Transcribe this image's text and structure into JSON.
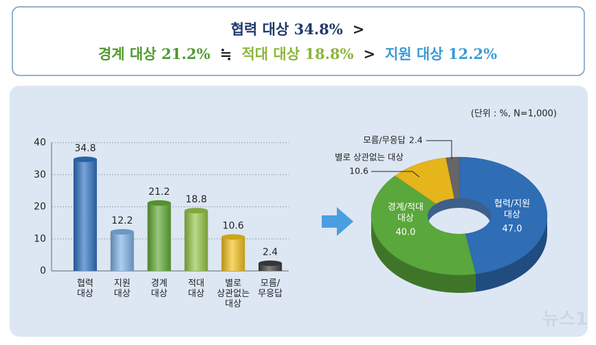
{
  "header": {
    "lines": [
      [
        {
          "text": "협력 대상 34.8%",
          "color": "#1f3a6b"
        },
        {
          "text": ">",
          "color": "#222222"
        }
      ],
      [
        {
          "text": "경계 대상 21.2%",
          "color": "#4f9a2c"
        },
        {
          "text": "≒",
          "color": "#222222"
        },
        {
          "text": "적대 대상 18.8%",
          "color": "#8cb63a"
        },
        {
          "text": ">",
          "color": "#222222"
        },
        {
          "text": "지원 대상 12.2%",
          "color": "#3a9ad6"
        }
      ]
    ]
  },
  "unit_note": "(단위 : %, N=1,000)",
  "watermark": "뉴스1",
  "chart_data": [
    {
      "type": "bar",
      "categories": [
        "협력\n대상",
        "지원\n대상",
        "경계\n대상",
        "적대\n대상",
        "별로\n상관없는\n대상",
        "모름/\n무응답"
      ],
      "values": [
        34.8,
        12.2,
        21.2,
        18.8,
        10.6,
        2.4
      ],
      "colors": [
        "#2e72c2",
        "#7fb2e8",
        "#62aa36",
        "#95c646",
        "#f4c21c",
        "#3f3f3f"
      ],
      "ylim": [
        0,
        40
      ],
      "yticks": [
        0,
        10,
        20,
        30,
        40
      ],
      "grid": true
    },
    {
      "type": "pie",
      "categories": [
        "협력/지원\n대상",
        "경계/적대\n대상",
        "별로 상관없는 대상",
        "모름/무응답"
      ],
      "values": [
        47.0,
        40.0,
        10.6,
        2.4
      ],
      "value_labels": [
        "47.0",
        "40.0",
        "10.6",
        "2.4"
      ],
      "colors": [
        "#2f6db5",
        "#5aa73b",
        "#e6b41b",
        "#666666"
      ]
    }
  ]
}
